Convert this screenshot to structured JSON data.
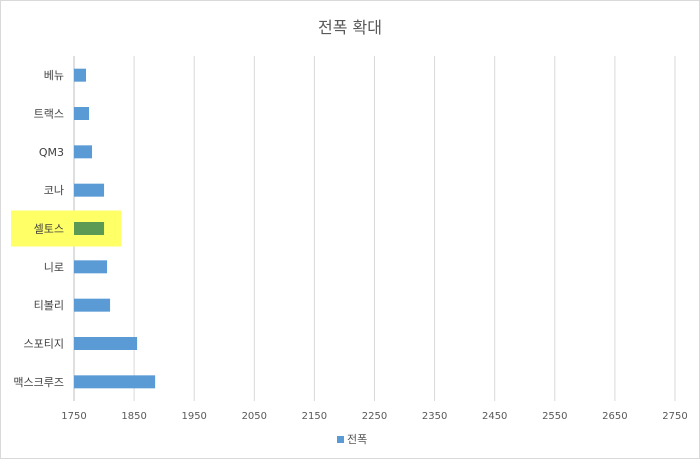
{
  "chart_data": {
    "type": "bar",
    "orientation": "horizontal",
    "title": "전폭 확대",
    "categories": [
      "베뉴",
      "트랙스",
      "QM3",
      "코나",
      "셀토스",
      "니로",
      "티볼리",
      "스포티지",
      "맥스크루즈"
    ],
    "series": [
      {
        "name": "전폭",
        "color": "#5b9bd5",
        "values": [
          1770,
          1775,
          1780,
          1800,
          1800,
          1805,
          1810,
          1855,
          1885
        ]
      }
    ],
    "highlight": {
      "category": "셀토스",
      "bar_color": "#5a9a55",
      "label_background": "#ffff66"
    },
    "x_ticks": [
      1750,
      1850,
      1950,
      2050,
      2150,
      2250,
      2350,
      2450,
      2550,
      2650,
      2750
    ],
    "xlim": [
      1750,
      2750
    ],
    "grid": true,
    "legend_position": "bottom"
  }
}
